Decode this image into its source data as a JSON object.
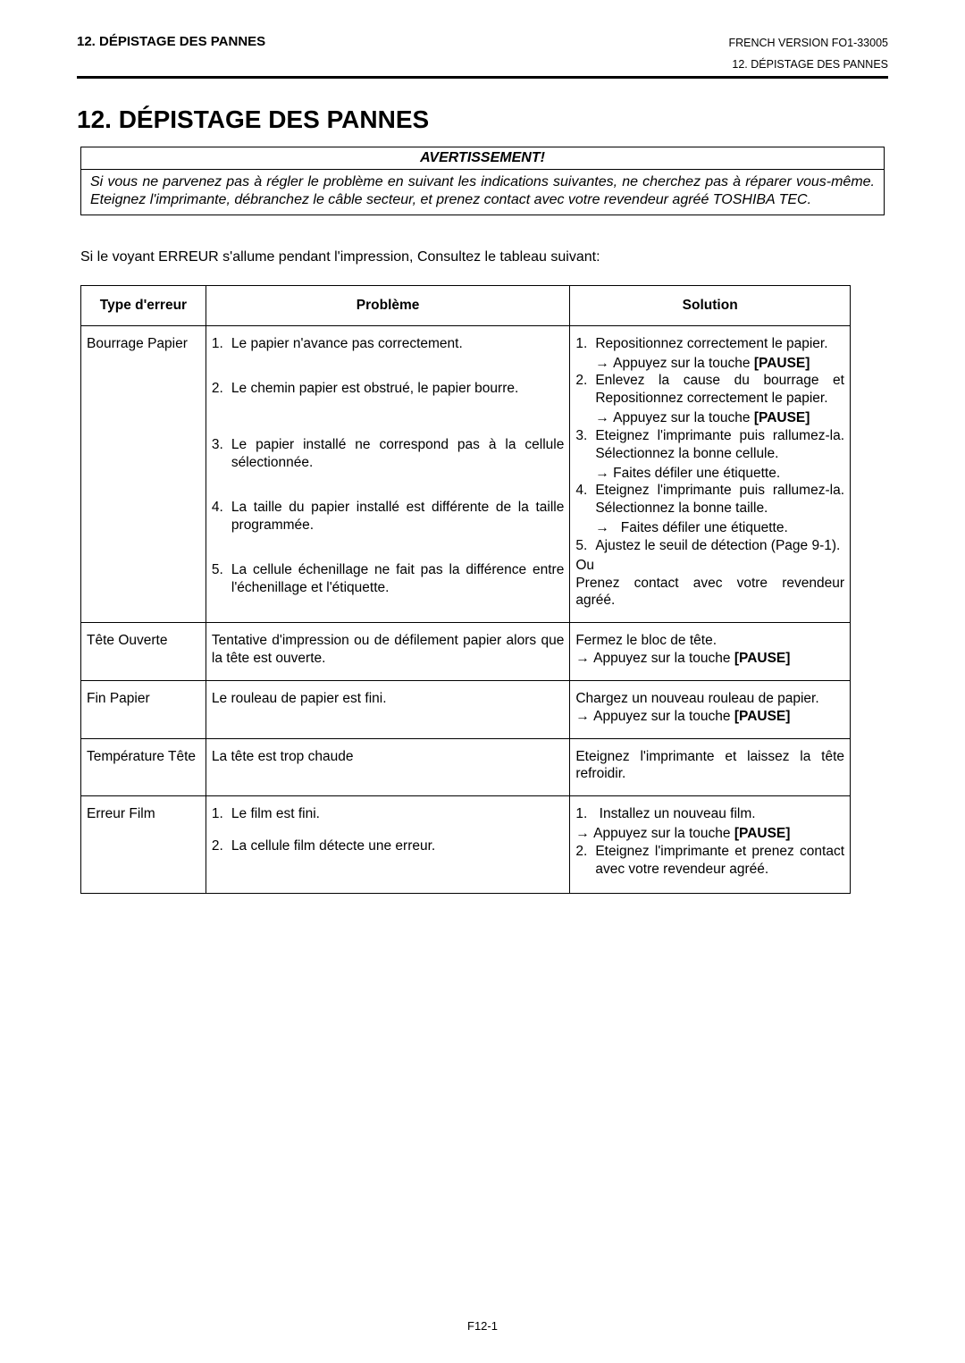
{
  "header": {
    "left": "12. DÉPISTAGE DES PANNES",
    "right_top": "FRENCH VERSION FO1-33005",
    "right_sub": "12. DÉPISTAGE DES PANNES"
  },
  "title": "12.  DÉPISTAGE DES PANNES",
  "warning": {
    "heading": "AVERTISSEMENT!",
    "body": "Si vous ne parvenez pas à régler le problème en suivant les indications suivantes, ne cherchez pas à réparer vous-même. Eteignez l'imprimante, débranchez le câble secteur, et prenez contact avec votre revendeur agréé TOSHIBA TEC."
  },
  "intro": "Si le voyant ERREUR s'allume pendant l'impression, Consultez le tableau suivant:",
  "table": {
    "headers": {
      "c1": "Type d'erreur",
      "c2": "Problème",
      "c3": "Solution"
    },
    "rows": [
      {
        "type": "Bourrage Papier",
        "problems": [
          "Le papier n'avance pas correctement.",
          "Le chemin papier est obstrué, le papier bourre.",
          "Le papier installé ne correspond pas à la cellule sélectionnée.",
          "La taille du papier installé est différente de la taille programmée.",
          "La cellule échenillage ne fait pas la différence entre l'échenillage et l'étiquette."
        ],
        "solutions": {
          "s1a": "Repositionnez correctement le papier.",
          "s1b": "Appuyez sur la touche ",
          "s2a": "Enlevez la cause du bourrage et Repositionnez correctement le papier.",
          "s2b": "Appuyez sur la touche ",
          "s3a": "Eteignez l'imprimante puis rallumez-la. Sélectionnez la bonne cellule.",
          "s3b": "Faites défiler une étiquette.",
          "s4a": "Eteignez l'imprimante puis rallumez-la. Sélectionnez la bonne taille.",
          "s4b": "Faites défiler une étiquette.",
          "s5a": "Ajustez le seuil de détection (Page 9-1).",
          "s5or": "Ou",
          "s5b": "Prenez contact avec votre revendeur agréé.",
          "pause": "[PAUSE]"
        }
      },
      {
        "type": "Tête Ouverte",
        "problem": "Tentative d'impression ou de défilement papier alors que la tête est ouverte.",
        "sol_a": "Fermez le bloc de tête.",
        "sol_b": "Appuyez sur la touche ",
        "pause": "[PAUSE]"
      },
      {
        "type": "Fin Papier",
        "problem": "Le rouleau de papier est fini.",
        "sol_a": "Chargez un nouveau rouleau de papier.",
        "sol_b": "Appuyez sur la touche ",
        "pause": "[PAUSE]"
      },
      {
        "type": "Température Tête",
        "problem": "La tête est trop chaude",
        "solution": "Eteignez l'imprimante et laissez la tête refroidir."
      },
      {
        "type": "Erreur Film",
        "p1": "Le film est fini.",
        "p2": "La cellule film détecte une erreur.",
        "s1a": "Installez un nouveau film.",
        "s1b": "Appuyez sur la touche ",
        "pause": "[PAUSE]",
        "s2": "Eteignez l'imprimante et prenez contact avec votre revendeur agréé."
      }
    ]
  },
  "footer": "F12-1"
}
